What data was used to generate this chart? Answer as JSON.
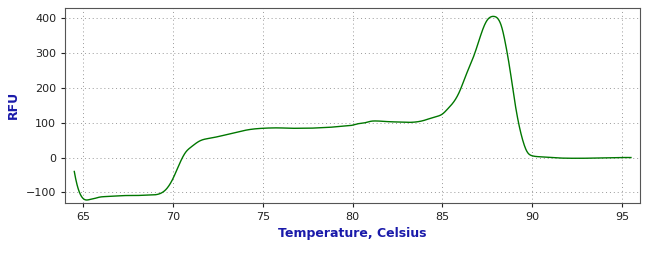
{
  "title": "",
  "xlabel": "Temperature, Celsius",
  "ylabel": "RFU",
  "line_color": "#007700",
  "background_color": "#ffffff",
  "plot_bg_color": "#ffffff",
  "grid_color": "#999999",
  "xlim": [
    64.0,
    96.0
  ],
  "ylim": [
    -130,
    430
  ],
  "xticks": [
    65,
    70,
    75,
    80,
    85,
    90,
    95
  ],
  "yticks": [
    -100,
    0,
    100,
    200,
    300,
    400
  ],
  "xlabel_color": "#1a1aaa",
  "ylabel_color": "#1a1aaa",
  "tick_label_color": "#222222",
  "xlabel_fontsize": 9,
  "ylabel_fontsize": 9,
  "tick_fontsize": 8,
  "curve_x": [
    64.5,
    65.0,
    65.2,
    65.4,
    65.6,
    65.8,
    66.0,
    66.3,
    66.7,
    67.0,
    67.5,
    68.0,
    68.5,
    69.0,
    69.3,
    69.6,
    70.0,
    70.3,
    70.7,
    71.0,
    71.5,
    72.0,
    72.5,
    73.0,
    73.5,
    74.0,
    74.5,
    75.0,
    75.5,
    76.0,
    76.5,
    77.0,
    77.5,
    78.0,
    78.5,
    79.0,
    79.5,
    80.0,
    80.3,
    80.7,
    81.0,
    81.3,
    81.7,
    82.0,
    82.5,
    83.0,
    83.5,
    84.0,
    84.3,
    84.5,
    84.7,
    85.0,
    85.3,
    85.7,
    86.0,
    86.3,
    86.7,
    87.0,
    87.3,
    87.5,
    87.7,
    87.9,
    88.0,
    88.1,
    88.3,
    88.5,
    88.8,
    89.0,
    89.2,
    89.5,
    89.7,
    90.0,
    90.5,
    91.0,
    92.0,
    93.0,
    94.0,
    95.0,
    95.5
  ],
  "curve_y": [
    -40,
    -118,
    -122,
    -120,
    -118,
    -115,
    -113,
    -112,
    -111,
    -110,
    -109,
    -109,
    -108,
    -107,
    -103,
    -92,
    -60,
    -25,
    15,
    30,
    48,
    55,
    60,
    66,
    72,
    78,
    82,
    84,
    85,
    85,
    84,
    84,
    84,
    85,
    86,
    88,
    90,
    93,
    97,
    100,
    104,
    105,
    104,
    103,
    102,
    101,
    102,
    107,
    112,
    115,
    118,
    125,
    140,
    165,
    195,
    235,
    285,
    330,
    375,
    395,
    404,
    405,
    403,
    398,
    375,
    330,
    240,
    170,
    110,
    45,
    18,
    5,
    2,
    0,
    -2,
    -2,
    -1,
    0,
    0
  ]
}
